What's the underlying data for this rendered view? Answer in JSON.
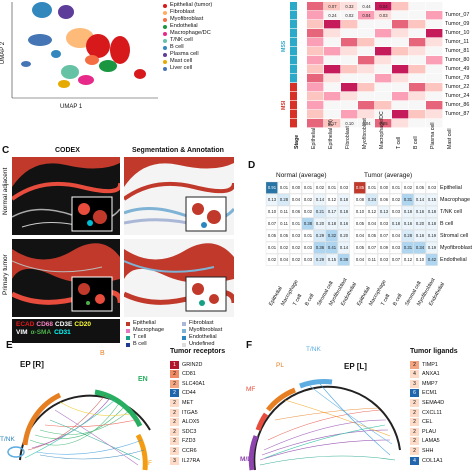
{
  "panel_a": {
    "axis_x": "UMAP 1",
    "axis_y": "UMAP 2",
    "legend": [
      {
        "label": "Epithelial (tumor)",
        "color": "#d7191c"
      },
      {
        "label": "Fibroblast",
        "color": "#fdae61"
      },
      {
        "label": "Myofibroblast",
        "color": "#f46d43"
      },
      {
        "label": "Endothelial",
        "color": "#1a9641"
      },
      {
        "label": "Macrophage/DC",
        "color": "#e7298a"
      },
      {
        "label": "T/NK cell",
        "color": "#66c2a5"
      },
      {
        "label": "B cell",
        "color": "#3288bd"
      },
      {
        "label": "Plasma cell",
        "color": "#5e3c99"
      },
      {
        "label": "Mast cell",
        "color": "#e6ab02"
      },
      {
        "label": "Liver cell",
        "color": "#4575b4"
      }
    ]
  },
  "panel_b": {
    "rows": [
      "Tumor_07",
      "Tumor_09",
      "Tumor_10",
      "Tumor_11",
      "Tumor_81",
      "Tumor_80",
      "Tumor_49",
      "Tumor_78",
      "Tumor_22",
      "Tumor_24",
      "Tumor_86",
      "Tumor_87"
    ],
    "top_values": [
      [
        "0.07",
        "0.32",
        "0.44",
        "0.04"
      ],
      [
        "0.24",
        "0.02",
        "0.04",
        "0.03"
      ]
    ],
    "col_labels": [
      "Stage",
      "Epithelial",
      "Epithelial (N)",
      "Fibroblast",
      "Myofibroblast",
      "Macrophage/DC",
      "T cell",
      "B cell",
      "Plasma cell",
      "Mast cell"
    ],
    "side_labels": [
      "MSS",
      "MSI"
    ],
    "bottom_values": [
      "0.17",
      "0.10",
      "0.04",
      "0.05"
    ]
  },
  "panel_c": {
    "left_title": "CODEX",
    "right_title": "Segmentation & Annotation",
    "row_labels": [
      "Normal adjacent",
      "Primary tumor"
    ],
    "markers_line1": [
      {
        "label": "ECAD",
        "color": "#e41a1c"
      },
      {
        "label": "CD68",
        "color": "#f781bf"
      },
      {
        "label": "CD3E",
        "color": "#ffffff"
      },
      {
        "label": "CD20",
        "color": "#ffff33"
      }
    ],
    "markers_line2": [
      {
        "label": "VIM",
        "color": "#ffffff"
      },
      {
        "label": "α-SMA",
        "color": "#4daf4a"
      },
      {
        "label": "CD31",
        "color": "#00ffff"
      }
    ],
    "legend": [
      {
        "label": "Epithelial",
        "color": "#c0392b"
      },
      {
        "label": "Fibroblast",
        "color": "#aab7d6"
      },
      {
        "label": "Macrophage",
        "color": "#e377c2"
      },
      {
        "label": "Myofibroblast",
        "color": "#7fb3d5"
      },
      {
        "label": "T cell",
        "color": "#16a085"
      },
      {
        "label": "Endothelial",
        "color": "#2e86c1"
      },
      {
        "label": "B cell",
        "color": "#1f3a93"
      },
      {
        "label": "Undefined",
        "color": "#dddddd"
      }
    ]
  },
  "panel_d": {
    "normal_title": "Normal (average)",
    "tumor_title": "Tumor (average)",
    "rows": [
      "Epithelial",
      "Macrophage",
      "T/NK cell",
      "B cell",
      "Stromal cell",
      "Myofibroblast",
      "Endothelial"
    ],
    "cols": [
      "Epithelial",
      "Macrophage",
      "T cell",
      "B cell",
      "Stromal cell",
      "Myofibroblast",
      "Endothelial"
    ],
    "normal_values": [
      [
        "0.91",
        "0.01",
        "0.00",
        "0.01",
        "0.02",
        "0.01",
        "0.03"
      ],
      [
        "0.13",
        "0.28",
        "0.04",
        "0.02",
        "0.14",
        "0.12",
        "0.18"
      ],
      [
        "0.10",
        "0.11",
        "0.06",
        "0.02",
        "0.21",
        "0.17",
        "0.18"
      ],
      [
        "0.07",
        "0.11",
        "0.01",
        "0.38",
        "0.20",
        "0.18",
        "0.16"
      ],
      [
        "0.05",
        "0.05",
        "0.03",
        "0.01",
        "0.29",
        "0.32",
        "0.20"
      ],
      [
        "0.01",
        "0.02",
        "0.02",
        "0.03",
        "0.36",
        "0.41",
        "0.14"
      ],
      [
        "0.02",
        "0.04",
        "0.02",
        "0.03",
        "0.29",
        "0.15",
        "0.38"
      ]
    ],
    "tumor_values": [
      [
        "0.85",
        "0.01",
        "0.00",
        "0.01",
        "0.02",
        "0.05",
        "0.03"
      ],
      [
        "0.08",
        "0.24",
        "0.06",
        "0.02",
        "0.31",
        "0.14",
        "0.15"
      ],
      [
        "0.10",
        "0.12",
        "0.13",
        "0.03",
        "0.18",
        "0.16",
        "0.18"
      ],
      [
        "0.05",
        "0.04",
        "0.03",
        "0.18",
        "0.16",
        "0.20",
        "0.18"
      ],
      [
        "0.04",
        "0.05",
        "0.07",
        "0.04",
        "0.28",
        "0.16",
        "0.19"
      ],
      [
        "0.05",
        "0.07",
        "0.09",
        "0.03",
        "0.31",
        "0.34",
        "0.19"
      ],
      [
        "0.04",
        "0.11",
        "0.03",
        "0.07",
        "0.12",
        "0.10",
        "0.42"
      ]
    ]
  },
  "panel_e": {
    "center_label": "EP [R]",
    "sector_labels": [
      "B",
      "EN",
      "T/NK",
      "F"
    ],
    "title": "Tumor receptors",
    "genes": [
      {
        "rank": "1",
        "name": "GRIN2D",
        "color": "#b2182b"
      },
      {
        "rank": "2",
        "name": "CD81",
        "color": "#ef8a62"
      },
      {
        "rank": "2",
        "name": "SLC40A1",
        "color": "#f4a582"
      },
      {
        "rank": "2",
        "name": "CD44",
        "color": "#2166ac"
      },
      {
        "rank": "2",
        "name": "MET",
        "color": "#fddbc7"
      },
      {
        "rank": "2",
        "name": "ITGA5",
        "color": "#fddbc7"
      },
      {
        "rank": "2",
        "name": "ALOX5",
        "color": "#fddbc7"
      },
      {
        "rank": "2",
        "name": "SDC3",
        "color": "#fddbc7"
      },
      {
        "rank": "2",
        "name": "FZD3",
        "color": "#fddbc7"
      },
      {
        "rank": "2",
        "name": "CCR6",
        "color": "#fddbc7"
      },
      {
        "rank": "3",
        "name": "IL27RA",
        "color": "#fddbc7"
      }
    ]
  },
  "panel_f": {
    "center_label": "EP [L]",
    "sector_labels": [
      "T/NK",
      "PL",
      "MF",
      "M/D"
    ],
    "title": "Tumor ligands",
    "genes": [
      {
        "rank": "2",
        "name": "TIMP1",
        "color": "#f4a582"
      },
      {
        "rank": "4",
        "name": "ANXA1",
        "color": "#fddbc7"
      },
      {
        "rank": "3",
        "name": "MMP7",
        "color": "#fddbc7"
      },
      {
        "rank": "6",
        "name": "ECM1",
        "color": "#2166ac"
      },
      {
        "rank": "2",
        "name": "SEMA4D",
        "color": "#fddbc7"
      },
      {
        "rank": "2",
        "name": "CXCL11",
        "color": "#fddbc7"
      },
      {
        "rank": "2",
        "name": "CEL",
        "color": "#fddbc7"
      },
      {
        "rank": "2",
        "name": "PLAU",
        "color": "#fddbc7"
      },
      {
        "rank": "2",
        "name": "LAMA5",
        "color": "#fddbc7"
      },
      {
        "rank": "2",
        "name": "SHH",
        "color": "#fddbc7"
      },
      {
        "rank": "4",
        "name": "COL1A1",
        "color": "#2166ac"
      }
    ]
  },
  "panel_letters": [
    "C",
    "D",
    "E",
    "F"
  ]
}
